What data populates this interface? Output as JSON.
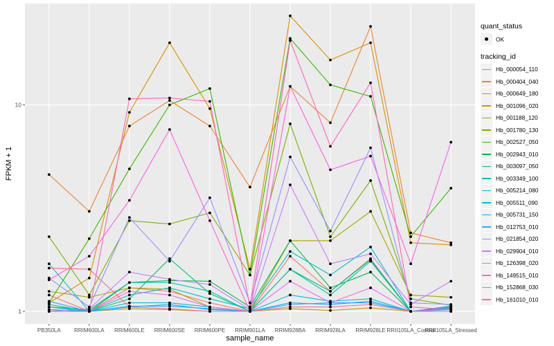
{
  "chart_data": {
    "type": "line",
    "title": "",
    "xlabel": "sample_name",
    "ylabel": "FPKM + 1",
    "yscale": "log10",
    "ylim": [
      0.87,
      31
    ],
    "y_ticks": [
      {
        "value": 1,
        "label": "1"
      },
      {
        "value": 10,
        "label": "10"
      }
    ],
    "grid": true,
    "categories": [
      "PB350LA",
      "RRIM600LA",
      "RRIM600LE",
      "RRIM600SE",
      "RRIM600PE",
      "RRIM901LA",
      "RRIM928BA",
      "RRIM928LA",
      "RRIM928LE",
      "RRII105LA_Control",
      "RRII105LA_Stressed"
    ],
    "legend_position": "right",
    "shape_legend": {
      "title": "quant_status",
      "entries": [
        "OK"
      ]
    },
    "color_legend_title": "tracking_id",
    "series": [
      {
        "name": "Hb_000054_110",
        "color": "#F8766D",
        "values": [
          1.2,
          1.0,
          1.3,
          1.25,
          1.1,
          1.0,
          1.85,
          1.25,
          1.8,
          1.0,
          1.05
        ]
      },
      {
        "name": "Hb_000404_040",
        "color": "#EA8331",
        "values": [
          4.6,
          3.05,
          7.9,
          10.5,
          7.9,
          4.0,
          12.3,
          8.2,
          24.0,
          2.4,
          2.15
        ]
      },
      {
        "name": "Hb_000649_180",
        "color": "#D89000",
        "values": [
          1.1,
          1.45,
          9.2,
          20.0,
          9.6,
          1.6,
          27.0,
          16.5,
          20.0,
          2.15,
          2.1
        ]
      },
      {
        "name": "Hb_001096_020",
        "color": "#C09B00",
        "values": [
          1.02,
          1.0,
          1.03,
          1.02,
          1.0,
          1.0,
          1.03,
          1.01,
          1.04,
          1.0,
          1.06
        ]
      },
      {
        "name": "Hb_001188_120",
        "color": "#A3A500",
        "values": [
          1.25,
          1.17,
          1.3,
          1.28,
          1.05,
          1.0,
          2.2,
          2.2,
          3.05,
          1.2,
          1.17
        ]
      },
      {
        "name": "Hb_001780_130",
        "color": "#7CAE00",
        "values": [
          2.3,
          1.2,
          2.75,
          2.65,
          3.0,
          1.5,
          8.1,
          2.3,
          4.3,
          1.15,
          1.07
        ]
      },
      {
        "name": "Hb_002527_050",
        "color": "#39B600",
        "values": [
          1.1,
          2.25,
          4.9,
          10.0,
          12.0,
          1.5,
          21.0,
          12.5,
          11.0,
          2.3,
          3.95
        ]
      },
      {
        "name": "Hb_002943_010",
        "color": "#00BB4E",
        "values": [
          1.08,
          1.0,
          1.38,
          1.41,
          1.4,
          1.05,
          2.2,
          1.3,
          1.55,
          1.0,
          1.03
        ]
      },
      {
        "name": "Hb_003097_050",
        "color": "#00BF7D",
        "values": [
          1.05,
          1.0,
          1.15,
          1.8,
          1.22,
          1.0,
          1.6,
          1.25,
          1.78,
          1.0,
          1.02
        ]
      },
      {
        "name": "Hb_003349_100",
        "color": "#00C1A3",
        "values": [
          1.05,
          1.02,
          1.38,
          1.38,
          1.25,
          1.0,
          1.6,
          1.2,
          1.75,
          1.0,
          1.0
        ]
      },
      {
        "name": "Hb_005214_080",
        "color": "#00BFC4",
        "values": [
          1.7,
          1.0,
          1.2,
          1.3,
          1.15,
          1.03,
          1.95,
          1.5,
          2.05,
          1.0,
          1.05
        ]
      },
      {
        "name": "Hb_005511_090",
        "color": "#00BAE0",
        "values": [
          1.05,
          1.0,
          1.1,
          1.1,
          1.05,
          1.0,
          1.2,
          1.12,
          1.15,
          1.0,
          1.06
        ]
      },
      {
        "name": "Hb_005731_150",
        "color": "#00B0F6",
        "values": [
          1.02,
          1.0,
          1.05,
          1.08,
          1.02,
          1.0,
          1.1,
          1.08,
          1.12,
          1.0,
          1.04
        ]
      },
      {
        "name": "Hb_012753_010",
        "color": "#35A2FF",
        "values": [
          1.12,
          1.0,
          1.06,
          1.06,
          1.03,
          1.0,
          1.08,
          1.1,
          1.1,
          1.0,
          1.02
        ]
      },
      {
        "name": "Hb_021854_020",
        "color": "#9590FF",
        "values": [
          1.45,
          1.05,
          2.85,
          1.75,
          3.55,
          1.1,
          5.6,
          2.45,
          6.2,
          1.1,
          1.08
        ]
      },
      {
        "name": "Hb_029904_010",
        "color": "#C77CFF",
        "values": [
          1.0,
          1.03,
          1.55,
          1.43,
          1.35,
          1.02,
          4.1,
          1.7,
          1.9,
          1.08,
          1.4
        ]
      },
      {
        "name": "Hb_126398_020",
        "color": "#E76BF3",
        "values": [
          1.0,
          1.0,
          1.25,
          1.2,
          1.05,
          1.0,
          1.4,
          1.1,
          1.3,
          1.0,
          1.03
        ]
      },
      {
        "name": "Hb_149515_010",
        "color": "#FA62DB",
        "values": [
          1.42,
          1.85,
          3.45,
          7.6,
          2.75,
          1.0,
          12.3,
          4.85,
          5.65,
          1.7,
          6.6
        ]
      },
      {
        "name": "Hb_152868_030",
        "color": "#FF62BC",
        "values": [
          1.0,
          1.0,
          10.7,
          10.8,
          10.4,
          1.05,
          20.5,
          6.3,
          12.8,
          1.05,
          1.02
        ]
      },
      {
        "name": "Hb_161010_010",
        "color": "#FF6C91",
        "values": [
          1.62,
          1.6,
          1.05,
          1.03,
          1.0,
          1.0,
          1.05,
          1.05,
          1.08,
          1.0,
          1.0
        ]
      }
    ]
  }
}
